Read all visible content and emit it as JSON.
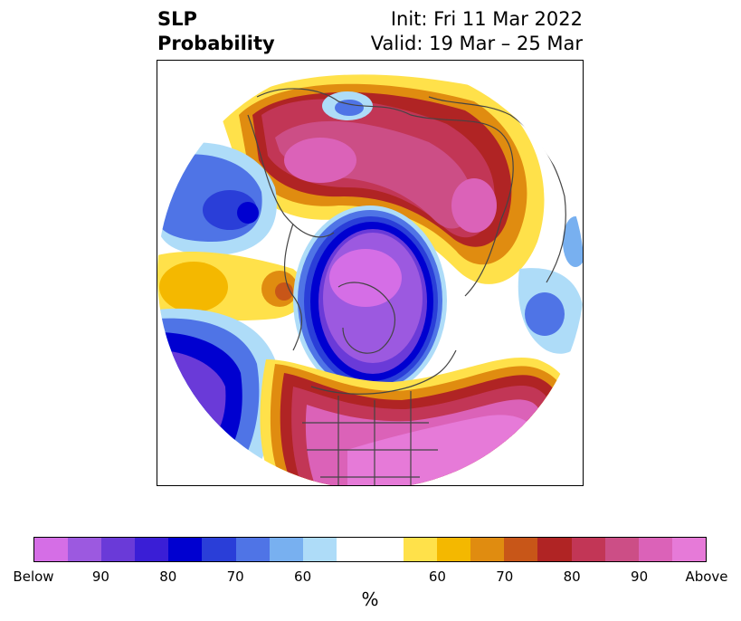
{
  "header": {
    "title_line1": "SLP",
    "title_line2": "Probability",
    "init_text": "Init: Fri 11 Mar 2022",
    "valid_text": "Valid: 19 Mar – 25 Mar"
  },
  "colorbar": {
    "colors": [
      "#d56ee6",
      "#9c59e0",
      "#6a3ad8",
      "#3a1ed6",
      "#0000d0",
      "#2a3ed8",
      "#4f74e6",
      "#78b0f0",
      "#aedcf8",
      "#ffffff",
      "#ffffff",
      "#ffe14a",
      "#f4b800",
      "#e08c10",
      "#c85618",
      "#b02424",
      "#c23656",
      "#cc4e86",
      "#db62b8",
      "#e67ad8"
    ],
    "tick_labels": [
      "Below",
      "90",
      "80",
      "70",
      "60",
      "",
      "60",
      "70",
      "80",
      "90",
      "Above"
    ],
    "unit_label": "%"
  },
  "palette": {
    "above_strong": "#e67ad8",
    "above_mid": "#cc4e86",
    "above_red": "#b02424",
    "above_orange": "#e08c10",
    "above_yellow": "#ffe14a",
    "below_light": "#aedcf8",
    "below_mid": "#4f74e6",
    "below_dark": "#0000d0",
    "below_purple": "#d56ee6",
    "coastline": "#444444"
  }
}
